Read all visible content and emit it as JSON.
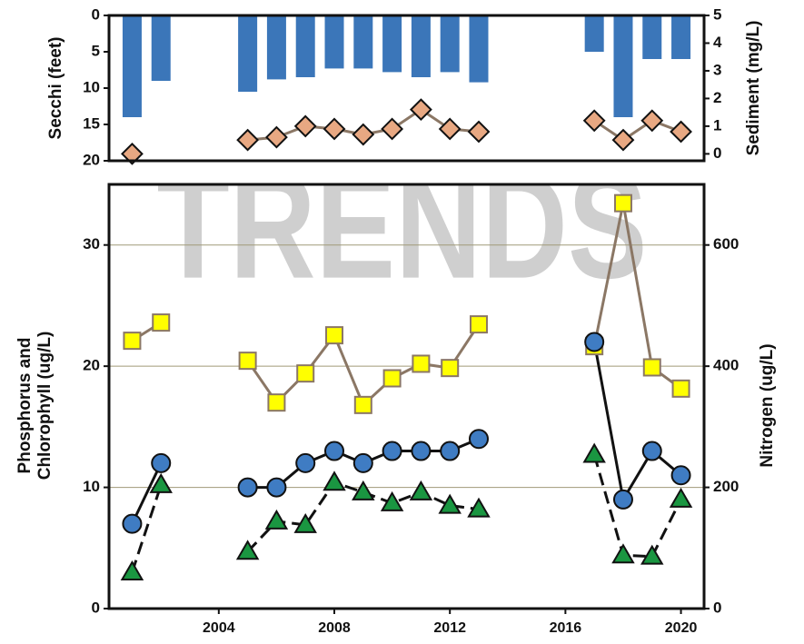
{
  "chart_data": [
    {
      "type": "bar",
      "x": [
        2001,
        2002,
        2003,
        2004,
        2005,
        2006,
        2007,
        2008,
        2009,
        2010,
        2011,
        2012,
        2013,
        2014,
        2015,
        2016,
        2017,
        2018,
        2019,
        2020
      ],
      "xlim": [
        2000.2,
        2020.8
      ],
      "ylabel": "Secchi (feet)",
      "ylim": [
        0,
        20
      ],
      "yticks": [
        0,
        5,
        10,
        15,
        20
      ],
      "invert_y": true,
      "y2label": "Sediment (mg/L)",
      "y2lim": [
        -0.25,
        5
      ],
      "y2ticks": [
        0,
        1,
        2,
        3,
        4,
        5
      ],
      "series": [
        {
          "type": "bar",
          "color": "#3b76b9",
          "values": [
            14,
            9,
            null,
            null,
            10.5,
            8.8,
            8.5,
            7.3,
            7.3,
            7.8,
            8.5,
            7.8,
            9.2,
            null,
            null,
            null,
            5,
            14,
            6,
            6
          ]
        },
        {
          "type": "line",
          "marker": "diamond",
          "axis": "y2",
          "color": "#e8a882",
          "line_color": "#8b7765",
          "values": [
            0,
            null,
            null,
            null,
            0.5,
            0.6,
            1.0,
            0.9,
            0.7,
            0.9,
            1.6,
            0.9,
            0.8,
            null,
            null,
            null,
            1.2,
            0.5,
            1.2,
            0.8
          ]
        }
      ]
    },
    {
      "type": "line",
      "watermark": "TRENDS",
      "x": [
        2001,
        2002,
        2003,
        2004,
        2005,
        2006,
        2007,
        2008,
        2009,
        2010,
        2011,
        2012,
        2013,
        2014,
        2015,
        2016,
        2017,
        2018,
        2019,
        2020
      ],
      "xlim": [
        2000.2,
        2020.8
      ],
      "xticks": [
        2004,
        2008,
        2012,
        2016,
        2020
      ],
      "ylabel": [
        "Phosphorus and",
        "Chlorophyll (ug/L)"
      ],
      "ylim": [
        0,
        35
      ],
      "yticks": [
        0,
        10,
        20,
        30
      ],
      "grid": true,
      "y2label": "Nitrogen (ug/L)",
      "y2lim": [
        0,
        700
      ],
      "y2ticks": [
        0,
        200,
        400,
        600
      ],
      "series": [
        {
          "type": "line",
          "marker": "square",
          "axis": "y2",
          "color": "#ffff00",
          "line_color": "#8b7765",
          "values": [
            442,
            472,
            null,
            null,
            409,
            340,
            388,
            451,
            336,
            380,
            404,
            397,
            469,
            null,
            null,
            null,
            433,
            669,
            398,
            363
          ]
        },
        {
          "type": "line",
          "marker": "circle",
          "color": "#3f7cc3",
          "line_color": "#111111",
          "values": [
            7,
            12,
            null,
            null,
            10,
            10,
            12,
            13,
            12,
            13,
            13,
            13,
            14,
            null,
            null,
            null,
            22,
            9,
            13,
            11
          ]
        },
        {
          "type": "line",
          "marker": "triangle",
          "dashed": true,
          "color": "#1a9641",
          "line_color": "#111111",
          "values": [
            3,
            10.2,
            null,
            null,
            4.7,
            7.2,
            6.9,
            10.4,
            9.6,
            8.7,
            9.6,
            8.5,
            8.2,
            null,
            null,
            null,
            12.7,
            4.4,
            4.3,
            9
          ]
        }
      ]
    }
  ]
}
